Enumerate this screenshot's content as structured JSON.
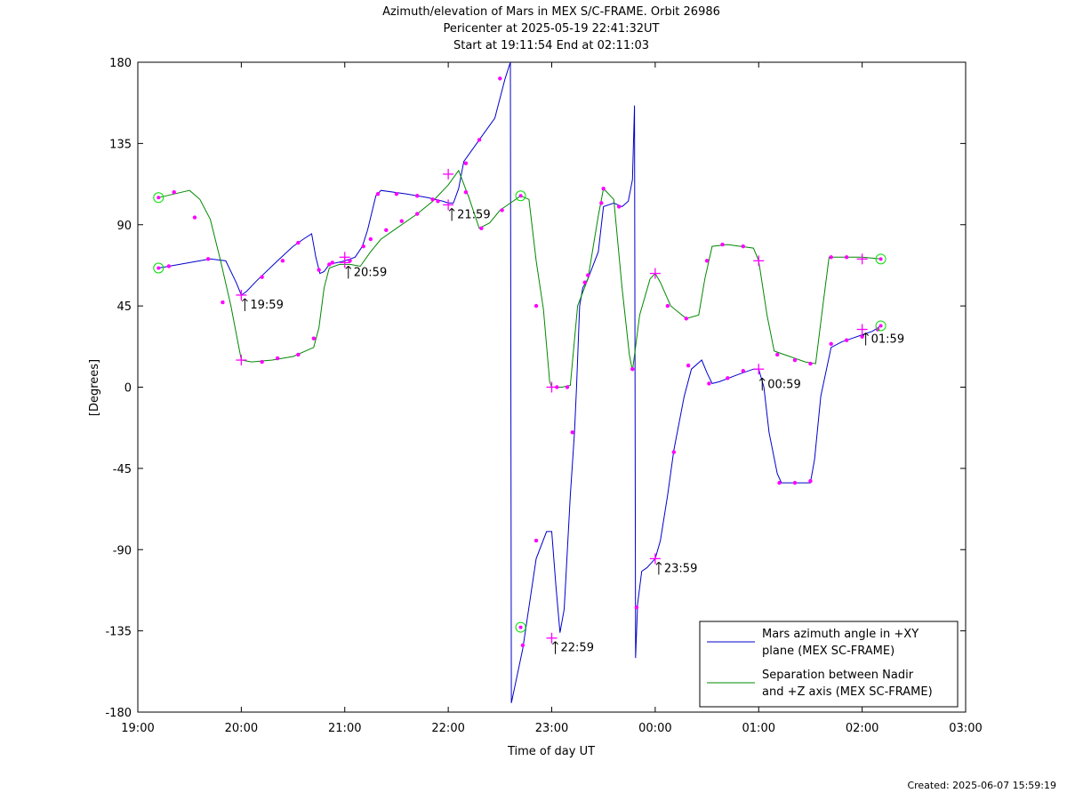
{
  "chart_data": {
    "type": "line",
    "title_lines": [
      "Azimuth/elevation of Mars in MEX S/C-FRAME.  Orbit 26986",
      "Pericenter at 2025-05-19 22:41:32UT",
      "Start at 19:11:54 End at 02:11:03"
    ],
    "xlabel": "Time of day UT",
    "ylabel": "[Degrees]",
    "x_unit": "hours since 19:00 UT",
    "xlim": [
      0,
      8
    ],
    "ylim": [
      -180,
      180
    ],
    "x_ticks": [
      {
        "v": 0,
        "label": "19:00"
      },
      {
        "v": 1,
        "label": "20:00"
      },
      {
        "v": 2,
        "label": "21:00"
      },
      {
        "v": 3,
        "label": "22:00"
      },
      {
        "v": 4,
        "label": "23:00"
      },
      {
        "v": 5,
        "label": "00:00"
      },
      {
        "v": 6,
        "label": "01:00"
      },
      {
        "v": 7,
        "label": "02:00"
      },
      {
        "v": 8,
        "label": "03:00"
      }
    ],
    "y_ticks": [
      {
        "v": 180,
        "label": "180"
      },
      {
        "v": 135,
        "label": "135"
      },
      {
        "v": 90,
        "label": "90"
      },
      {
        "v": 45,
        "label": "45"
      },
      {
        "v": 0,
        "label": "0"
      },
      {
        "v": -45,
        "label": "-45"
      },
      {
        "v": -90,
        "label": "-90"
      },
      {
        "v": -135,
        "label": "-135"
      },
      {
        "v": -180,
        "label": "-180"
      }
    ],
    "legend": {
      "position": "bottom-right"
    },
    "series": [
      {
        "name": "Mars azimuth angle in +XY\nplane (MEX SC-FRAME)",
        "color": "#0000cc",
        "points": [
          [
            0.2,
            66
          ],
          [
            0.3,
            67
          ],
          [
            0.5,
            69
          ],
          [
            0.7,
            71
          ],
          [
            0.85,
            70
          ],
          [
            0.95,
            58
          ],
          [
            1.0,
            51
          ],
          [
            1.05,
            53
          ],
          [
            1.15,
            59
          ],
          [
            1.35,
            70
          ],
          [
            1.5,
            78
          ],
          [
            1.6,
            82
          ],
          [
            1.68,
            85
          ],
          [
            1.72,
            72
          ],
          [
            1.76,
            63
          ],
          [
            1.8,
            64
          ],
          [
            1.85,
            68
          ],
          [
            2.0,
            70
          ],
          [
            2.1,
            72
          ],
          [
            2.17,
            78
          ],
          [
            2.22,
            87
          ],
          [
            2.3,
            106
          ],
          [
            2.35,
            109
          ],
          [
            2.6,
            107
          ],
          [
            2.8,
            105
          ],
          [
            2.95,
            103
          ],
          [
            3.0,
            102
          ],
          [
            3.05,
            102
          ],
          [
            3.1,
            110
          ],
          [
            3.15,
            125
          ],
          [
            3.3,
            137
          ],
          [
            3.45,
            149
          ],
          [
            3.55,
            171
          ],
          [
            3.6,
            180
          ],
          [
            3.61,
            -175
          ],
          [
            3.72,
            -145
          ],
          [
            3.85,
            -95
          ],
          [
            3.95,
            -80
          ],
          [
            4.0,
            -80
          ],
          [
            4.04,
            -110
          ],
          [
            4.08,
            -136
          ],
          [
            4.12,
            -123
          ],
          [
            4.18,
            -60
          ],
          [
            4.22,
            -25
          ],
          [
            4.24,
            0
          ],
          [
            4.27,
            45
          ],
          [
            4.3,
            55
          ],
          [
            4.35,
            60
          ],
          [
            4.45,
            75
          ],
          [
            4.5,
            100
          ],
          [
            4.6,
            102
          ],
          [
            4.68,
            100
          ],
          [
            4.74,
            103
          ],
          [
            4.78,
            115
          ],
          [
            4.8,
            156
          ],
          [
            4.81,
            -150
          ],
          [
            4.83,
            -120
          ],
          [
            4.87,
            -102
          ],
          [
            4.92,
            -100
          ],
          [
            5.0,
            -95
          ],
          [
            5.05,
            -85
          ],
          [
            5.12,
            -60
          ],
          [
            5.18,
            -35
          ],
          [
            5.28,
            -5
          ],
          [
            5.35,
            10
          ],
          [
            5.45,
            15
          ],
          [
            5.5,
            8
          ],
          [
            5.55,
            2
          ],
          [
            5.62,
            3
          ],
          [
            5.8,
            7
          ],
          [
            5.95,
            10
          ],
          [
            6.0,
            10
          ],
          [
            6.05,
            0
          ],
          [
            6.1,
            -25
          ],
          [
            6.18,
            -48
          ],
          [
            6.22,
            -53
          ],
          [
            6.5,
            -53
          ],
          [
            6.54,
            -40
          ],
          [
            6.6,
            -5
          ],
          [
            6.7,
            22
          ],
          [
            6.8,
            25
          ],
          [
            6.9,
            27
          ],
          [
            7.0,
            29
          ],
          [
            7.1,
            31
          ],
          [
            7.18,
            34
          ]
        ],
        "markers_dot": [
          [
            0.3,
            67
          ],
          [
            0.68,
            71
          ],
          [
            1.2,
            61
          ],
          [
            1.4,
            70
          ],
          [
            1.55,
            80
          ],
          [
            1.75,
            65
          ],
          [
            1.88,
            69
          ],
          [
            2.05,
            70
          ],
          [
            2.18,
            78
          ],
          [
            2.32,
            107
          ],
          [
            2.5,
            107
          ],
          [
            2.7,
            106
          ],
          [
            2.9,
            103
          ],
          [
            3.17,
            124
          ],
          [
            3.3,
            137
          ],
          [
            3.5,
            171
          ],
          [
            3.72,
            -143
          ],
          [
            3.85,
            -85
          ],
          [
            4.2,
            -25
          ],
          [
            4.35,
            62
          ],
          [
            4.48,
            102
          ],
          [
            4.65,
            100
          ],
          [
            4.82,
            -122
          ],
          [
            5.18,
            -36
          ],
          [
            5.32,
            12
          ],
          [
            5.52,
            2
          ],
          [
            5.7,
            5
          ],
          [
            5.85,
            9
          ],
          [
            6.2,
            -53
          ],
          [
            6.35,
            -53
          ],
          [
            6.5,
            -52
          ],
          [
            6.7,
            24
          ],
          [
            6.85,
            26
          ],
          [
            7.0,
            28
          ],
          [
            7.15,
            32
          ]
        ],
        "markers_cross": [
          [
            1.0,
            51
          ],
          [
            2.0,
            72
          ],
          [
            3.0,
            118
          ],
          [
            4.0,
            -139
          ],
          [
            5.0,
            -95
          ],
          [
            6.0,
            10
          ],
          [
            7.0,
            32
          ]
        ],
        "markers_circle": [
          [
            0.2,
            66
          ],
          [
            3.7,
            -133
          ],
          [
            7.18,
            34
          ]
        ]
      },
      {
        "name": "Separation between Nadir\nand +Z axis (MEX SC-FRAME)",
        "color": "#008800",
        "points": [
          [
            0.2,
            105
          ],
          [
            0.35,
            107
          ],
          [
            0.5,
            109
          ],
          [
            0.6,
            104
          ],
          [
            0.7,
            93
          ],
          [
            0.8,
            70
          ],
          [
            0.9,
            45
          ],
          [
            1.0,
            15
          ],
          [
            1.1,
            14
          ],
          [
            1.3,
            15
          ],
          [
            1.5,
            17
          ],
          [
            1.7,
            22
          ],
          [
            1.75,
            33
          ],
          [
            1.8,
            55
          ],
          [
            1.85,
            66
          ],
          [
            1.95,
            68
          ],
          [
            2.05,
            68
          ],
          [
            2.15,
            67
          ],
          [
            2.25,
            75
          ],
          [
            2.35,
            82
          ],
          [
            2.5,
            88
          ],
          [
            2.7,
            96
          ],
          [
            2.85,
            103
          ],
          [
            3.0,
            112
          ],
          [
            3.1,
            120
          ],
          [
            3.2,
            105
          ],
          [
            3.3,
            88
          ],
          [
            3.4,
            91
          ],
          [
            3.5,
            98
          ],
          [
            3.6,
            102
          ],
          [
            3.7,
            106
          ],
          [
            3.78,
            104
          ],
          [
            3.85,
            70
          ],
          [
            3.92,
            43
          ],
          [
            3.98,
            3
          ],
          [
            4.0,
            0
          ],
          [
            4.1,
            0
          ],
          [
            4.18,
            1
          ],
          [
            4.25,
            45
          ],
          [
            4.35,
            60
          ],
          [
            4.45,
            95
          ],
          [
            4.5,
            110
          ],
          [
            4.6,
            104
          ],
          [
            4.68,
            55
          ],
          [
            4.75,
            18
          ],
          [
            4.78,
            9
          ],
          [
            4.85,
            40
          ],
          [
            4.95,
            60
          ],
          [
            5.0,
            63
          ],
          [
            5.05,
            58
          ],
          [
            5.15,
            45
          ],
          [
            5.3,
            38
          ],
          [
            5.42,
            40
          ],
          [
            5.48,
            60
          ],
          [
            5.55,
            78
          ],
          [
            5.7,
            79
          ],
          [
            5.95,
            77
          ],
          [
            6.0,
            70
          ],
          [
            6.08,
            40
          ],
          [
            6.15,
            20
          ],
          [
            6.3,
            17
          ],
          [
            6.45,
            14
          ],
          [
            6.55,
            13
          ],
          [
            6.62,
            45
          ],
          [
            6.68,
            72
          ],
          [
            6.8,
            72
          ],
          [
            7.0,
            72
          ],
          [
            7.18,
            71
          ]
        ],
        "markers_dot": [
          [
            0.35,
            108
          ],
          [
            0.55,
            94
          ],
          [
            0.82,
            47
          ],
          [
            1.2,
            14
          ],
          [
            1.35,
            16
          ],
          [
            1.55,
            18
          ],
          [
            1.7,
            27
          ],
          [
            1.85,
            68
          ],
          [
            2.25,
            82
          ],
          [
            2.4,
            87
          ],
          [
            2.55,
            92
          ],
          [
            2.7,
            96
          ],
          [
            2.85,
            104
          ],
          [
            3.17,
            108
          ],
          [
            3.32,
            88
          ],
          [
            3.52,
            98
          ],
          [
            3.85,
            45
          ],
          [
            4.05,
            0
          ],
          [
            4.15,
            0
          ],
          [
            4.32,
            58
          ],
          [
            4.5,
            110
          ],
          [
            4.78,
            10
          ],
          [
            5.12,
            45
          ],
          [
            5.3,
            38
          ],
          [
            5.5,
            70
          ],
          [
            5.65,
            79
          ],
          [
            5.85,
            78
          ],
          [
            6.18,
            18
          ],
          [
            6.35,
            15
          ],
          [
            6.5,
            13
          ],
          [
            6.7,
            72
          ],
          [
            6.85,
            72
          ]
        ],
        "markers_cross": [
          [
            1.0,
            15
          ],
          [
            2.0,
            69
          ],
          [
            3.0,
            101
          ],
          [
            4.0,
            0
          ],
          [
            5.0,
            63
          ],
          [
            6.0,
            70
          ],
          [
            7.0,
            71
          ]
        ],
        "markers_circle": [
          [
            0.2,
            105
          ],
          [
            3.7,
            106
          ],
          [
            7.18,
            71
          ]
        ]
      }
    ],
    "annotations": [
      {
        "label": "19:59",
        "x": 1.0,
        "y": 51
      },
      {
        "label": "20:59",
        "x": 2.0,
        "y": 69
      },
      {
        "label": "21:59",
        "x": 3.0,
        "y": 101
      },
      {
        "label": "22:59",
        "x": 4.0,
        "y": -139
      },
      {
        "label": "23:59",
        "x": 5.0,
        "y": -95
      },
      {
        "label": "00:59",
        "x": 6.0,
        "y": 7
      },
      {
        "label": "01:59",
        "x": 7.0,
        "y": 32
      }
    ]
  },
  "footer": "Created: 2025-06-07 15:59:19",
  "colors": {
    "marker": "#ff00ff",
    "circle": "#00dd00",
    "axis": "#000000"
  }
}
